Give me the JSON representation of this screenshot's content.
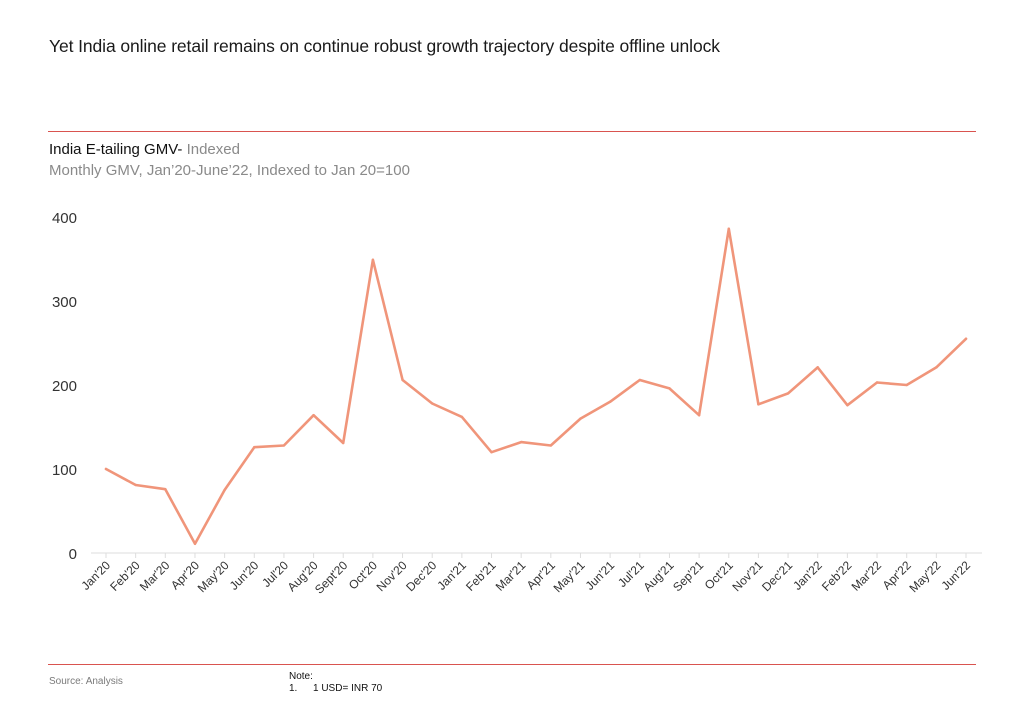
{
  "headline": "Yet India online retail remains on continue robust growth trajectory despite offline unlock",
  "source": "Source: Analysis",
  "note": {
    "heading": "Note:",
    "items": [
      {
        "num": "1.",
        "text": "1 USD= INR 70"
      }
    ]
  },
  "colors": {
    "accent_rule": "#d9534f",
    "series": "#f0957a"
  },
  "chart_data": {
    "type": "line",
    "title": "India E-tailing GMV-",
    "title_suffix": "Indexed",
    "subtitle": "Monthly GMV, Jan’20-June’22, Indexed to Jan 20=100",
    "categories": [
      "Jan'20",
      "Feb'20",
      "Mar'20",
      "Apr'20",
      "May'20",
      "Jun'20",
      "Jul'20",
      "Aug'20",
      "Sept'20",
      "Oct'20",
      "Nov'20",
      "Dec'20",
      "Jan'21",
      "Feb'21",
      "Mar'21",
      "Apr'21",
      "May'21",
      "Jun'21",
      "Jul'21",
      "Aug'21",
      "Sep'21",
      "Oct'21",
      "Nov'21",
      "Dec'21",
      "Jan'22",
      "Feb'22",
      "Mar'22",
      "Apr'22",
      "May'22",
      "Jun'22"
    ],
    "series": [
      {
        "values": [
          100,
          81,
          76,
          11,
          75,
          126,
          128,
          164,
          131,
          349,
          206,
          178,
          162,
          120,
          132,
          128,
          160,
          180,
          206,
          196,
          164,
          386,
          177,
          190,
          221,
          176,
          203,
          200,
          221,
          255
        ]
      }
    ],
    "yticks": [
      0,
      100,
      200,
      300,
      400
    ],
    "ylim": [
      0,
      400
    ],
    "grid": false,
    "legend": "none"
  }
}
